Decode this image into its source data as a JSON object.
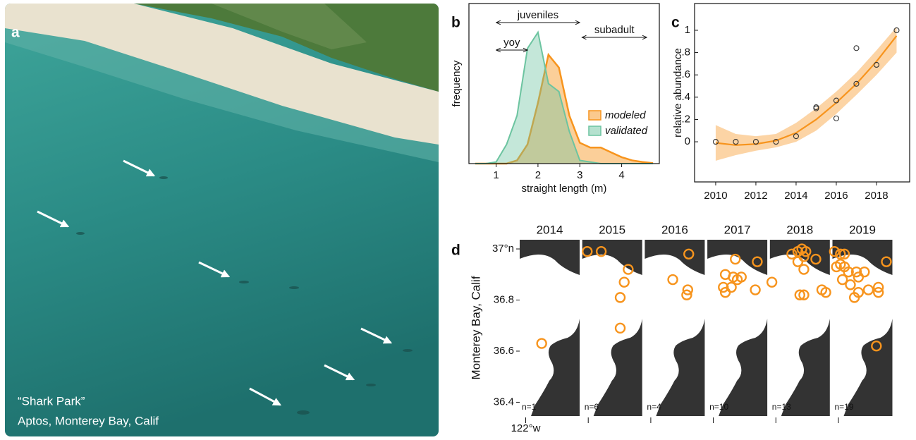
{
  "photo": {
    "label": "a",
    "caption": [
      "“Shark Park”",
      "Aptos, Monterey Bay, Calif"
    ]
  },
  "chart_data": [
    {
      "type": "area",
      "label": "b",
      "xlabel": "straight length (m)",
      "ylabel": "frequency",
      "x": [
        0.5,
        0.75,
        1,
        1.25,
        1.5,
        1.75,
        2,
        2.25,
        2.5,
        2.75,
        3,
        3.25,
        3.5,
        3.75,
        4,
        4.25,
        4.5,
        4.75
      ],
      "series": [
        {
          "name": "modeled",
          "color": "#f7941d",
          "values": [
            0,
            0,
            0,
            0,
            0.02,
            0.12,
            0.38,
            0.68,
            0.6,
            0.3,
            0.13,
            0.1,
            0.1,
            0.07,
            0.04,
            0.02,
            0.01,
            0.003
          ]
        },
        {
          "name": "validated",
          "color": "#6cc4a0",
          "values": [
            0,
            0,
            0.01,
            0.12,
            0.3,
            0.72,
            0.82,
            0.5,
            0.45,
            0.2,
            0.02,
            0.01,
            0,
            0,
            0,
            0,
            0,
            0
          ]
        }
      ],
      "xlim": [
        0.35,
        4.9
      ],
      "xticks": [
        1,
        2,
        3,
        4
      ],
      "ylim": [
        0,
        1
      ],
      "annotations": [
        {
          "text": "juveniles",
          "from": 1,
          "to": 3
        },
        {
          "text": "subadult",
          "from": 3.05,
          "to": 4.6
        },
        {
          "text": "yoy",
          "from": 1,
          "to": 1.75
        }
      ]
    },
    {
      "type": "scatter",
      "label": "c",
      "ylabel": "relative abundance",
      "color": "#f7941d",
      "x": [
        2010,
        2011,
        2012,
        2013,
        2014,
        2015,
        2015,
        2016,
        2016,
        2017,
        2017,
        2018,
        2019
      ],
      "values": [
        0,
        0,
        0,
        0,
        0.05,
        0.31,
        0.3,
        0.37,
        0.21,
        0.84,
        0.52,
        0.69,
        1.0
      ],
      "fit": {
        "x": [
          2010,
          2011,
          2012,
          2013,
          2014,
          2015,
          2016,
          2017,
          2018,
          2019
        ],
        "values": [
          -0.01,
          -0.03,
          -0.02,
          0.01,
          0.08,
          0.2,
          0.35,
          0.52,
          0.72,
          0.95
        ],
        "lower": [
          -0.17,
          -0.12,
          -0.08,
          -0.05,
          0.0,
          0.1,
          0.25,
          0.42,
          0.6,
          0.8
        ],
        "upper": [
          0.15,
          0.07,
          0.05,
          0.07,
          0.17,
          0.3,
          0.45,
          0.62,
          0.82,
          1.03
        ]
      },
      "xlim": [
        2008.95,
        2019.65
      ],
      "xticks": [
        2010,
        2012,
        2014,
        2016,
        2018
      ],
      "ylim": [
        -0.36,
        1.24
      ],
      "yticks": [
        0,
        {
          "value": 0.2,
          "label": ".2"
        },
        {
          "value": 0.4,
          "label": ".4"
        },
        {
          "value": 0.6,
          "label": ".6"
        },
        {
          "value": 0.8,
          "label": ".8"
        },
        1
      ]
    },
    {
      "type": "map",
      "label": "d",
      "ylabel": "Monterey Bay, Calif",
      "color": "#f7941d",
      "ylim": [
        36.346,
        37.036
      ],
      "yticks": [
        {
          "value": 37,
          "label": "37°n"
        },
        36.8,
        36.6,
        36.4
      ],
      "xlim": [
        -122.03,
        -121.73
      ],
      "xticks": [
        {
          "value": -122,
          "label": "122°w"
        }
      ],
      "maps": [
        {
          "title": "2014",
          "n_label": "n=1",
          "lon": [
            -121.92
          ],
          "lat": [
            36.63
          ]
        },
        {
          "title": "2015",
          "n_label": "n=6",
          "lon": [
            -122.005,
            -121.935,
            -121.8,
            -121.82,
            -121.84,
            -121.84
          ],
          "lat": [
            36.99,
            36.99,
            36.92,
            36.87,
            36.81,
            36.69
          ]
        },
        {
          "title": "2016",
          "n_label": "n=4",
          "lon": [
            -121.81,
            -121.89,
            -121.815,
            -121.82
          ],
          "lat": [
            36.98,
            36.88,
            36.84,
            36.82
          ]
        },
        {
          "title": "2017",
          "n_label": "n=10",
          "lon": [
            -121.89,
            -121.78,
            -121.94,
            -121.9,
            -121.86,
            -121.88,
            -121.95,
            -121.94,
            -121.91,
            -121.79
          ],
          "lat": [
            36.96,
            36.95,
            36.9,
            36.89,
            36.89,
            36.88,
            36.85,
            36.83,
            36.85,
            36.84
          ]
        },
        {
          "title": "2018",
          "n_label": "n=13",
          "lon": [
            -121.92,
            -121.89,
            -121.87,
            -121.85,
            -121.86,
            -121.8,
            -121.89,
            -121.86,
            -122.02,
            -121.88,
            -121.86,
            -121.77,
            -121.75
          ],
          "lat": [
            36.98,
            36.99,
            37.0,
            36.99,
            36.97,
            36.96,
            36.95,
            36.92,
            36.87,
            36.82,
            36.82,
            36.84,
            36.83
          ]
        },
        {
          "title": "2019",
          "n_label": "n=19",
          "lon": [
            -122.02,
            -121.99,
            -121.97,
            -121.99,
            -122.01,
            -121.97,
            -121.95,
            -121.91,
            -121.87,
            -121.9,
            -121.98,
            -121.94,
            -121.9,
            -121.92,
            -121.85,
            -121.8,
            -121.8,
            -121.76,
            -121.81
          ],
          "lat": [
            36.99,
            36.98,
            36.98,
            36.94,
            36.93,
            36.93,
            36.91,
            36.91,
            36.91,
            36.89,
            36.88,
            36.86,
            36.83,
            36.81,
            36.84,
            36.85,
            36.83,
            36.95,
            36.62
          ]
        }
      ]
    }
  ]
}
